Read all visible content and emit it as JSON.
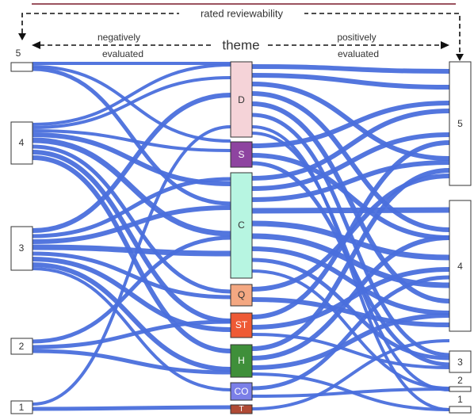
{
  "header": {
    "top_label": "rated reviewability",
    "center_label": "theme",
    "left_label_line1": "negatively",
    "left_label_line2": "evaluated",
    "right_label_line1": "positively",
    "right_label_line2": "evaluated"
  },
  "colors": {
    "link": "#4a6fdc",
    "top_rule": "#7a1a2a",
    "node_border": "#333333"
  },
  "left_nodes": [
    {
      "id": "L5",
      "label": "5"
    },
    {
      "id": "L4",
      "label": "4"
    },
    {
      "id": "L3",
      "label": "3"
    },
    {
      "id": "L2",
      "label": "2"
    },
    {
      "id": "L1",
      "label": "1"
    }
  ],
  "theme_nodes": [
    {
      "id": "D",
      "label": "D",
      "color": "#f5d3d8",
      "text_color": "#333333"
    },
    {
      "id": "S",
      "label": "S",
      "color": "#8e44a0",
      "text_color": "#ffffff"
    },
    {
      "id": "C",
      "label": "C",
      "color": "#b7f5e1",
      "text_color": "#333333"
    },
    {
      "id": "Q",
      "label": "Q",
      "color": "#f4a882",
      "text_color": "#333333"
    },
    {
      "id": "ST",
      "label": "ST",
      "color": "#ee5a35",
      "text_color": "#ffffff"
    },
    {
      "id": "H",
      "label": "H",
      "color": "#3f8f3a",
      "text_color": "#ffffff"
    },
    {
      "id": "CO",
      "label": "CO",
      "color": "#7b7fe8",
      "text_color": "#ffffff"
    },
    {
      "id": "T",
      "label": "T",
      "color": "#b04a35",
      "text_color": "#ffffff"
    }
  ],
  "right_nodes": [
    {
      "id": "R5",
      "label": "5"
    },
    {
      "id": "R4",
      "label": "4"
    },
    {
      "id": "R3",
      "label": "3"
    },
    {
      "id": "R2",
      "label": "2"
    },
    {
      "id": "R1",
      "label": "1"
    }
  ]
}
